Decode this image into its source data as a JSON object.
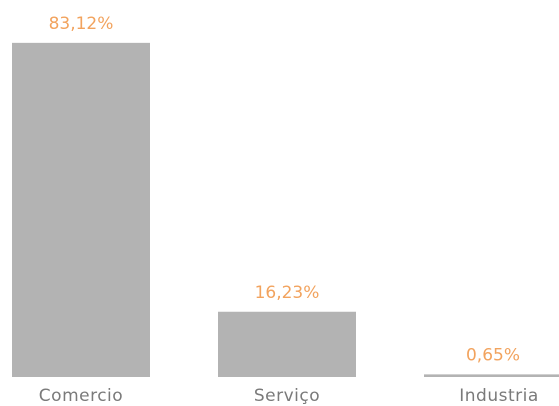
{
  "chart_data": {
    "type": "bar",
    "categories": [
      "Comercio",
      "Serviço",
      "Industria"
    ],
    "values": [
      83.12,
      16.23,
      0.65
    ],
    "value_labels": [
      "83,12%",
      "16,23%",
      "0,65%"
    ],
    "color": "#b3b3b3"
  }
}
